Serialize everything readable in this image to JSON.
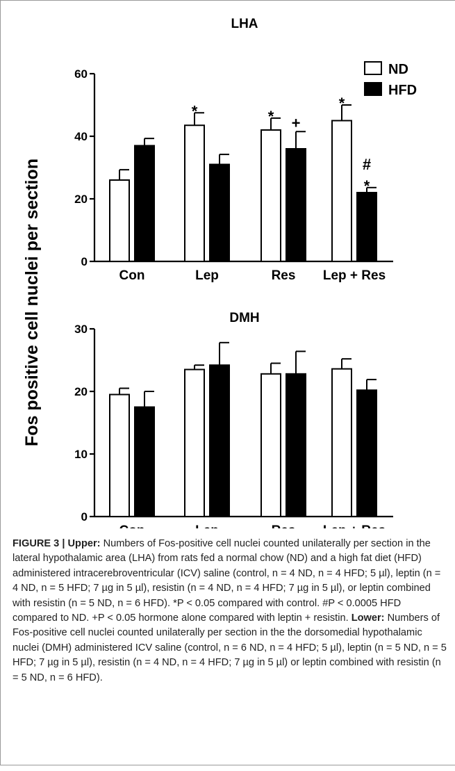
{
  "chart_data": {
    "ylabel": "Fos positive cell nuclei per section",
    "legend": {
      "placement": "top-right",
      "entries": [
        {
          "name": "ND",
          "fill": "#ffffff"
        },
        {
          "name": "HFD",
          "fill": "#000000"
        }
      ]
    },
    "charts": [
      {
        "title": "LHA",
        "type": "bar",
        "categories": [
          "Con",
          "Lep",
          "Res",
          "Lep + Res"
        ],
        "ylim": [
          0,
          60
        ],
        "yticks": [
          "0",
          "20",
          "40",
          "60"
        ],
        "series": [
          {
            "name": "ND",
            "values": [
              26,
              43.5,
              42,
              45
            ],
            "errors": [
              3.3,
              4,
              3.8,
              5
            ]
          },
          {
            "name": "HFD",
            "values": [
              37,
              31,
              36,
              22
            ],
            "errors": [
              2.3,
              3.2,
              5.5,
              1.6
            ]
          }
        ],
        "annotations": [
          {
            "category": 1,
            "series": "ND",
            "text": "*"
          },
          {
            "category": 2,
            "series": "ND",
            "text": "*"
          },
          {
            "category": 2,
            "series": "HFD",
            "text": "+"
          },
          {
            "category": 3,
            "series": "ND",
            "text": "*"
          },
          {
            "category": 3,
            "series": "HFD",
            "text": "#"
          },
          {
            "category": 3,
            "series": "HFD",
            "text": "*"
          }
        ]
      },
      {
        "title": "DMH",
        "type": "bar",
        "categories": [
          "Con",
          "Lep",
          "Res",
          "Lep + Res"
        ],
        "ylim": [
          0,
          30
        ],
        "yticks": [
          "0",
          "10",
          "20",
          "30"
        ],
        "series": [
          {
            "name": "ND",
            "values": [
              19.5,
              23.5,
              22.8,
              23.6
            ],
            "errors": [
              1,
              0.7,
              1.7,
              1.6
            ]
          },
          {
            "name": "HFD",
            "values": [
              17.5,
              24.2,
              22.8,
              20.2
            ],
            "errors": [
              2.5,
              3.6,
              3.6,
              1.7
            ]
          }
        ],
        "annotations": []
      }
    ]
  },
  "caption": {
    "label": "FIGURE 3 |",
    "upper_label": "Upper:",
    "upper_text": "Numbers of Fos-positive cell nuclei counted unilaterally per section in the lateral hypothalamic area (LHA) from rats fed a normal chow (ND) and a high fat diet (HFD) administered intracerebroventricular (ICV) saline (control, n = 4 ND, n = 4 HFD; 5 µl), leptin (n = 4 ND, n = 5 HFD; 7 µg in 5 µl), resistin (n = 4 ND, n = 4 HFD; 7 µg in 5 µl), or leptin combined with resistin (n = 5 ND, n = 6 HFD). *P < 0.05 compared with control. #P < 0.0005 HFD compared to ND. +P < 0.05 hormone alone compared with leptin + resistin.",
    "lower_label": "Lower:",
    "lower_text": "Numbers of Fos-positive cell nuclei counted unilaterally per section in the the dorsomedial hypothalamic nuclei (DMH) administered ICV saline (control, n = 6 ND, n = 4 HFD; 5 µl), leptin (n = 5 ND, n = 5 HFD; 7 µg in 5 µl), resistin (n = 4 ND, n = 4 HFD; 7 µg in 5 µl) or leptin combined with resistin (n = 5 ND, n = 6 HFD)."
  }
}
